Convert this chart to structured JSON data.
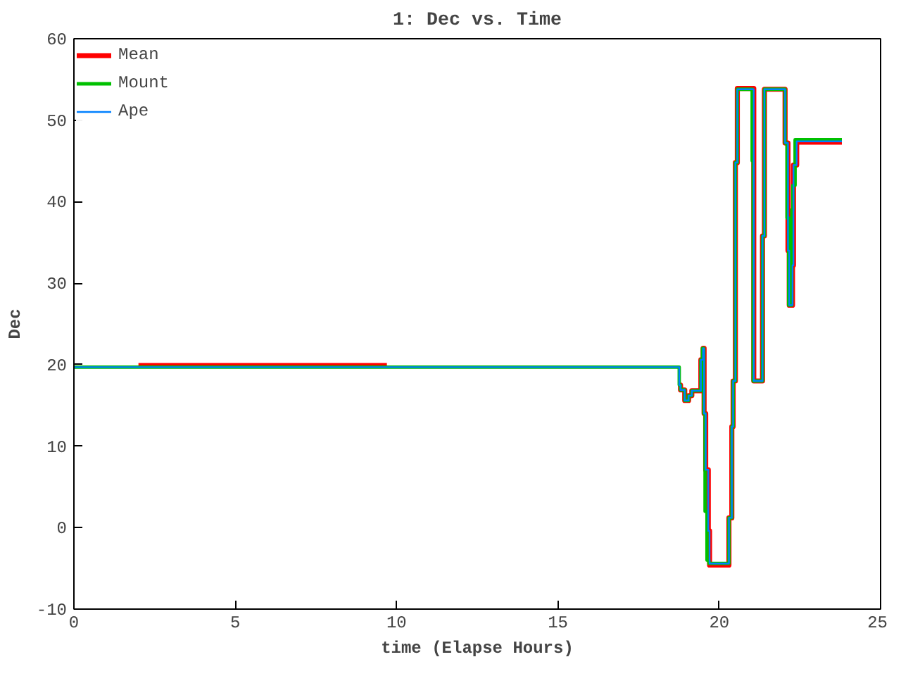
{
  "chart_data": {
    "type": "step",
    "title": "1: Dec vs. Time",
    "xlabel": "time (Elapse Hours)",
    "ylabel": "Dec",
    "xlim": [
      0,
      25
    ],
    "ylim": [
      -10,
      60
    ],
    "xticks": [
      0,
      5,
      10,
      15,
      20,
      25
    ],
    "yticks": [
      -10,
      0,
      10,
      20,
      30,
      40,
      50,
      60
    ],
    "grid": false,
    "legend": "top left",
    "marker": "none",
    "line_style": "solid",
    "series": [
      {
        "name": "Mean",
        "color": "#ff0000",
        "x": [
          2.0,
          9.7,
          9.75,
          18.76,
          18.8,
          18.93,
          19.05,
          19.15,
          19.43,
          19.5,
          19.53,
          19.58,
          19.66,
          19.7,
          20.3,
          20.39,
          20.43,
          20.5,
          20.56,
          21.07,
          21.34,
          21.4,
          22.04,
          22.13,
          22.17,
          22.27,
          22.3,
          22.4,
          23.8
        ],
        "values": [
          19.9,
          19.9,
          null,
          17.5,
          16.9,
          15.6,
          16.2,
          16.8,
          20.6,
          22.0,
          14,
          7.1,
          -0.4,
          -4.6,
          1.2,
          12.4,
          18,
          44.8,
          53.9,
          18,
          35.8,
          53.8,
          47.2,
          34,
          27.3,
          32.2,
          44.5,
          47.3,
          47.3
        ]
      },
      {
        "name": "Mount",
        "color": "#00c000",
        "x": [
          0,
          18.76,
          18.8,
          18.93,
          19.05,
          19.15,
          19.43,
          19.48,
          19.52,
          19.56,
          19.62,
          19.68,
          20.3,
          20.39,
          20.43,
          20.5,
          20.56,
          21.02,
          21.05,
          21.1,
          21.34,
          21.4,
          22.04,
          22.1,
          22.15,
          22.25,
          22.28,
          22.35,
          23.8
        ],
        "values": [
          19.7,
          17.5,
          16.9,
          15.6,
          16.2,
          16.8,
          20.6,
          22.0,
          14,
          2,
          -4.0,
          -4.4,
          1.2,
          12.4,
          18,
          44.8,
          53.8,
          45,
          18,
          18,
          35.8,
          53.8,
          47.2,
          38,
          27.3,
          39,
          42,
          47.6,
          47.6
        ]
      },
      {
        "name": "Ape",
        "color": "#0080ff",
        "x": [
          0,
          18.76,
          18.8,
          18.93,
          19.05,
          19.15,
          19.43,
          19.5,
          19.53,
          19.58,
          19.66,
          19.7,
          20.3,
          20.39,
          20.43,
          20.5,
          20.56,
          21.07,
          21.34,
          21.4,
          22.04,
          22.13,
          22.17,
          22.27,
          22.3,
          22.4,
          23.8
        ],
        "values": [
          19.7,
          17.5,
          16.9,
          15.6,
          16.2,
          16.8,
          20.6,
          22.0,
          14,
          7.1,
          -0.4,
          -4.4,
          1.2,
          12.4,
          18,
          44.8,
          53.8,
          18,
          35.8,
          53.8,
          47.2,
          34,
          27.3,
          32.2,
          44.5,
          47.4,
          47.4
        ]
      }
    ]
  }
}
